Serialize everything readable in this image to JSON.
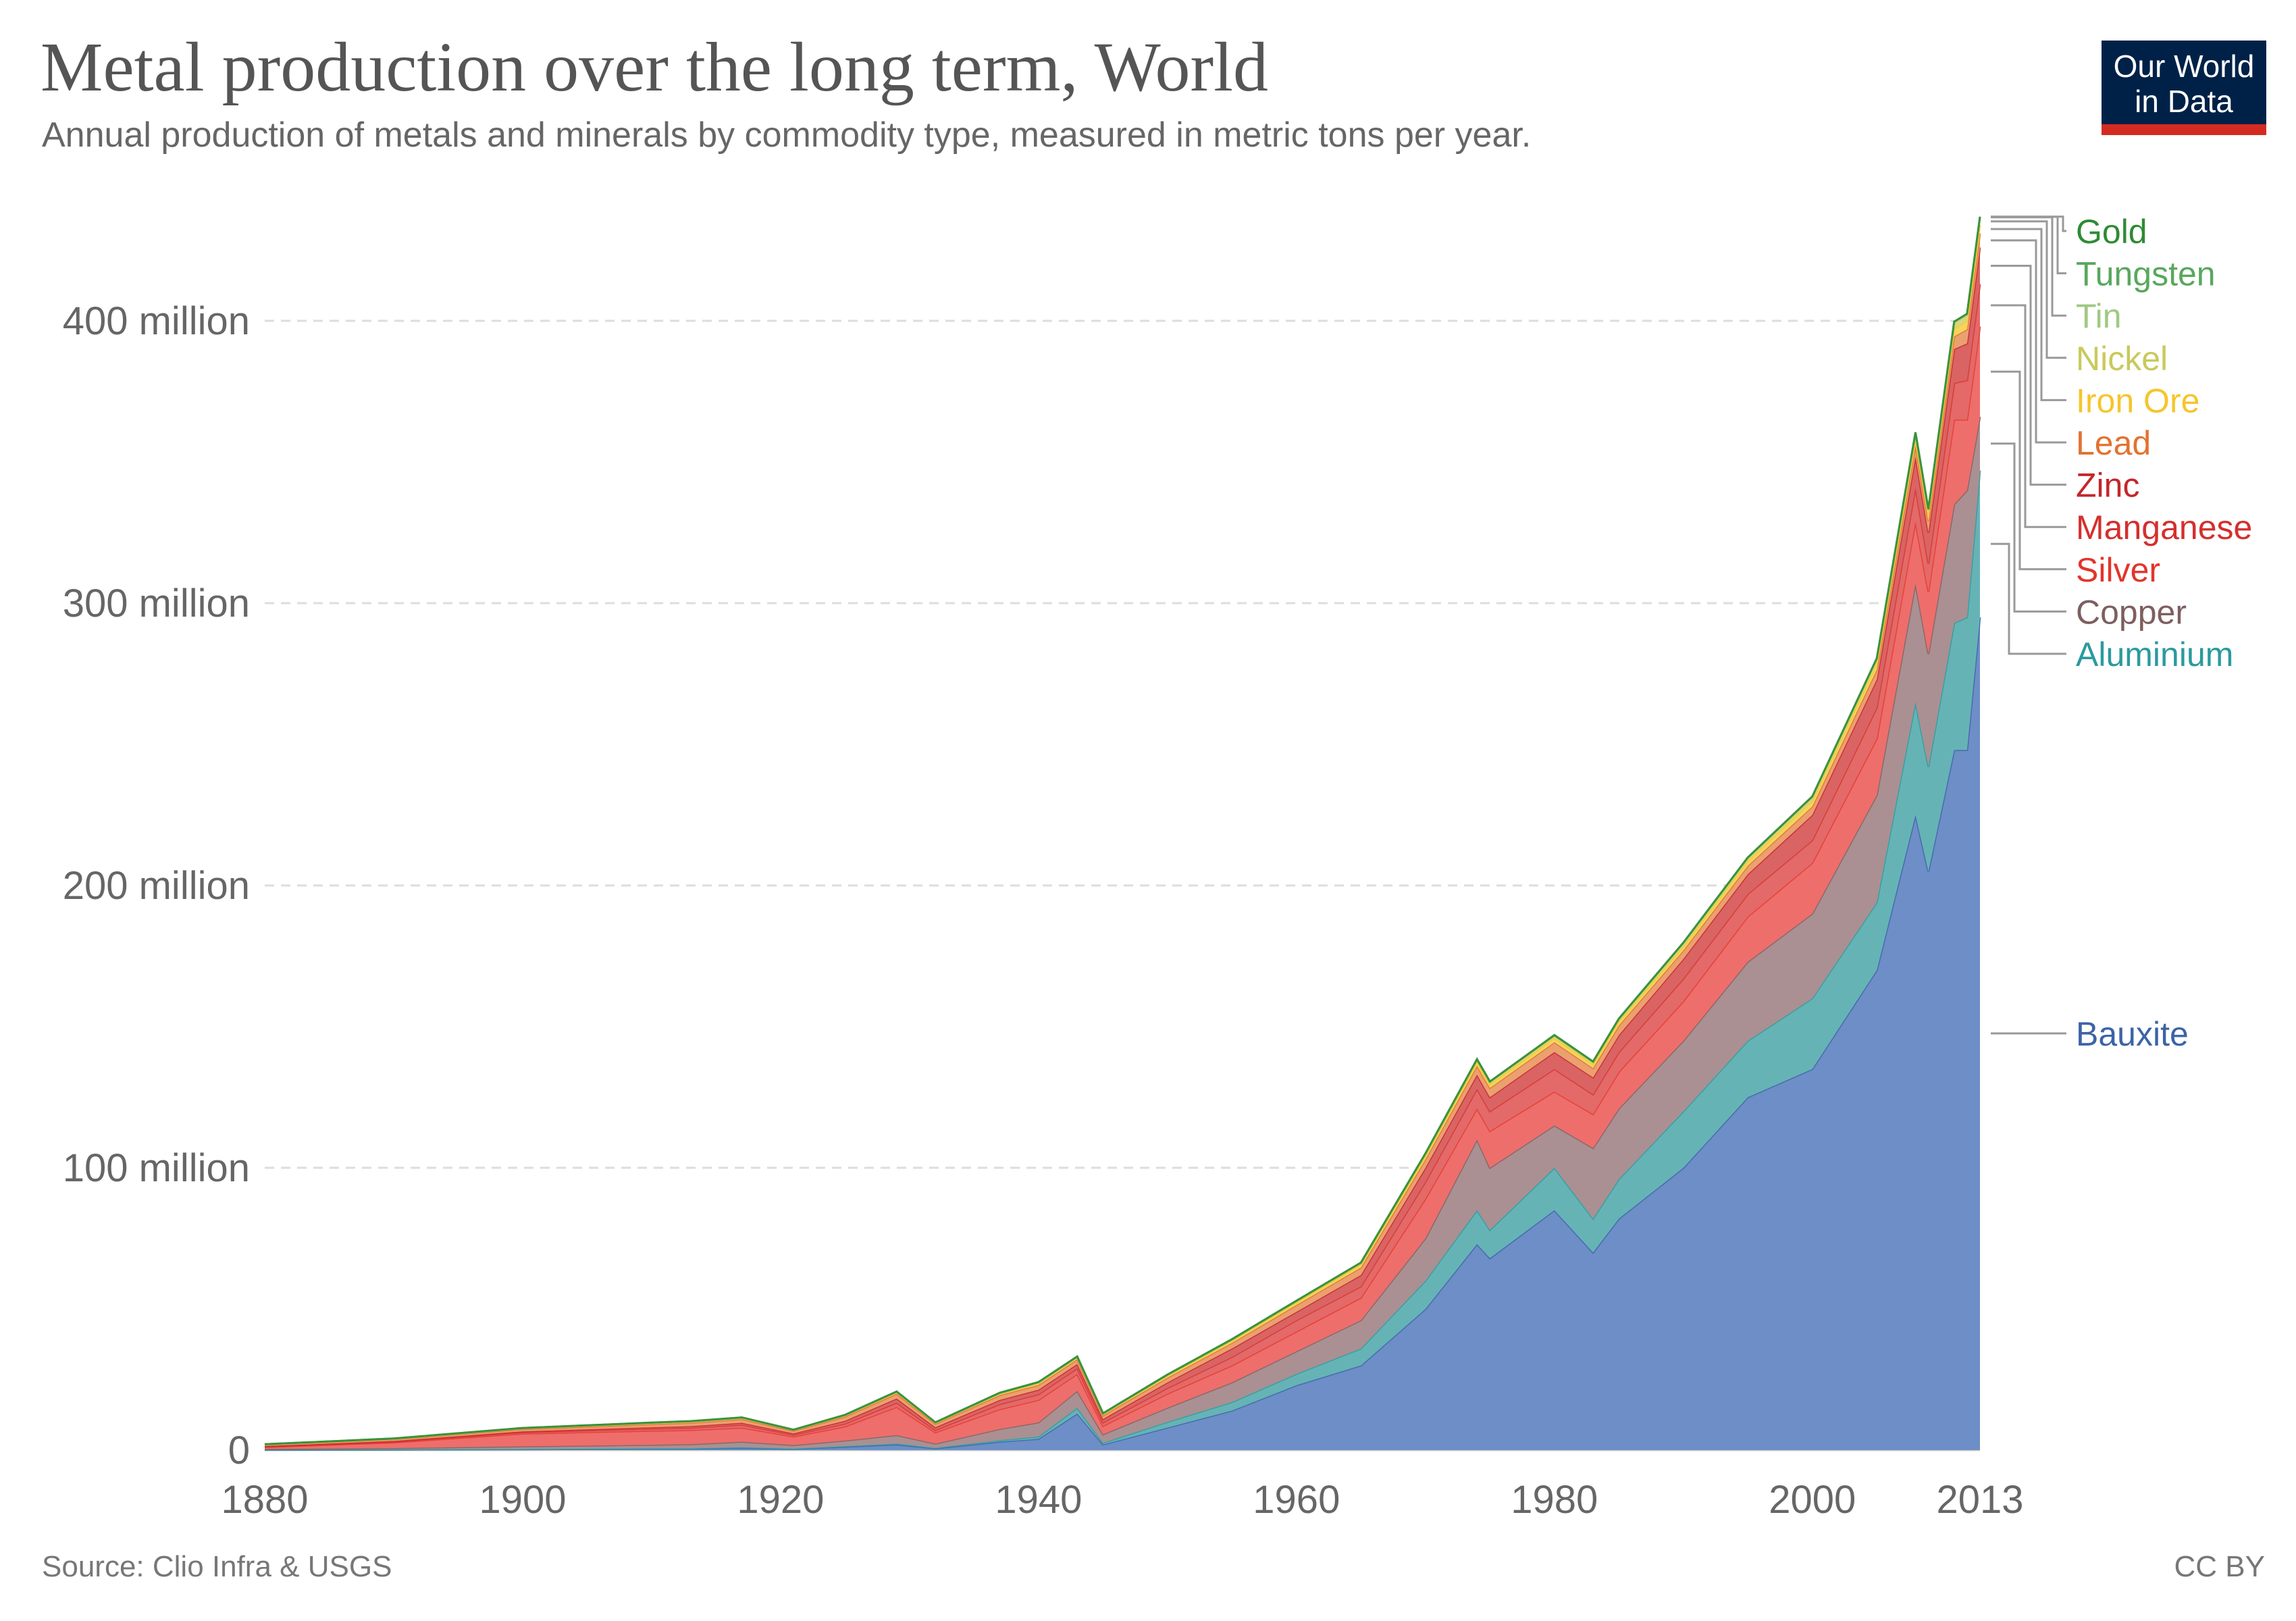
{
  "header": {
    "title": "Metal production over the long term, World",
    "subtitle": "Annual production of metals and minerals by commodity type, measured in metric tons per year.",
    "logo_line1": "Our World",
    "logo_line2": "in Data"
  },
  "footer": {
    "source": "Source: Clio Infra & USGS",
    "license": "CC BY"
  },
  "chart_data": {
    "type": "area",
    "stacked": true,
    "title": "Metal production over the long term, World",
    "xlim": [
      1880,
      2013
    ],
    "ylim": [
      0,
      437000000
    ],
    "grid": true,
    "legend_placement": "right",
    "x_ticks": [
      {
        "value": 1880,
        "label": "1880"
      },
      {
        "value": 1900,
        "label": "1900"
      },
      {
        "value": 1920,
        "label": "1920"
      },
      {
        "value": 1940,
        "label": "1940"
      },
      {
        "value": 1960,
        "label": "1960"
      },
      {
        "value": 1980,
        "label": "1980"
      },
      {
        "value": 2000,
        "label": "2000"
      },
      {
        "value": 2013,
        "label": "2013"
      }
    ],
    "y_ticks": [
      {
        "value": 0,
        "label": "0"
      },
      {
        "value": 100000000,
        "label": "100 million"
      },
      {
        "value": 200000000,
        "label": "200 million"
      },
      {
        "value": 300000000,
        "label": "300 million"
      },
      {
        "value": 400000000,
        "label": "400 million"
      }
    ],
    "unit": "metric tons",
    "x": [
      1880,
      1890,
      1900,
      1910,
      1913,
      1917,
      1921,
      1925,
      1929,
      1932,
      1937,
      1940,
      1943,
      1945,
      1950,
      1955,
      1960,
      1965,
      1970,
      1974,
      1975,
      1980,
      1983,
      1985,
      1990,
      1995,
      2000,
      2005,
      2008,
      2009,
      2011,
      2012,
      2013
    ],
    "series": [
      {
        "name": "Bauxite",
        "color": "#6d8ec6",
        "label_color": "#3c63a8",
        "values_million": [
          0.1,
          0.2,
          0.3,
          0.5,
          0.5,
          0.8,
          0.4,
          1.2,
          2,
          0.6,
          3,
          4,
          13,
          2,
          8,
          14,
          23,
          30,
          50,
          73,
          68,
          85,
          70,
          82,
          100,
          125,
          135,
          170,
          225,
          205,
          248,
          248,
          295
        ]
      },
      {
        "name": "Aluminium",
        "color": "#66b3b6",
        "label_color": "#2a9a9e",
        "values_million": [
          0.01,
          0.02,
          0.05,
          0.1,
          0.1,
          0.2,
          0.1,
          0.2,
          0.3,
          0.2,
          0.5,
          0.8,
          2,
          0.6,
          2,
          3,
          4,
          6,
          10,
          12,
          10,
          15,
          12,
          14,
          20,
          20,
          25,
          24,
          40,
          37,
          45,
          47,
          52
        ]
      },
      {
        "name": "Copper",
        "color": "#aa9092",
        "label_color": "#7d5f5f",
        "values_million": [
          0.3,
          0.5,
          1,
          1.3,
          1.5,
          2,
          1.3,
          2,
          3,
          1.5,
          4,
          5,
          6,
          3,
          5,
          7,
          8,
          10,
          15,
          25,
          22,
          15,
          25,
          25,
          25,
          28,
          30,
          38,
          42,
          40,
          42,
          45,
          19
        ]
      },
      {
        "name": "Silver",
        "color": "#ee6e6c",
        "label_color": "#e3342c",
        "values_million": [
          0.7,
          2,
          4.5,
          5,
          5,
          5,
          3,
          5,
          10,
          4,
          7,
          8,
          6,
          3,
          5,
          6,
          7,
          8,
          14,
          11,
          13,
          12,
          12,
          13,
          14,
          16,
          18,
          20,
          22,
          22,
          30,
          25,
          32
        ]
      },
      {
        "name": "Manganese",
        "color": "#e36a68",
        "label_color": "#d42f2d",
        "values_million": [
          0.2,
          0.3,
          0.5,
          0.7,
          0.8,
          1,
          0.6,
          1,
          1.5,
          0.8,
          1.8,
          2,
          2,
          1.2,
          2,
          3,
          4,
          4,
          6,
          7,
          7,
          8,
          7,
          7,
          8,
          8,
          8,
          11,
          12,
          10,
          13,
          14,
          15
        ]
      },
      {
        "name": "Zinc",
        "color": "#d96463",
        "label_color": "#c4262a",
        "values_million": [
          0.1,
          0.2,
          0.3,
          0.5,
          0.6,
          0.7,
          0.5,
          1,
          1.5,
          1,
          1.5,
          1.6,
          1.5,
          1.2,
          2,
          3,
          3,
          4,
          5,
          5,
          5,
          6,
          6,
          6,
          7,
          7,
          9,
          10,
          11,
          11,
          12,
          13,
          13
        ]
      },
      {
        "name": "Lead",
        "color": "#eba070",
        "label_color": "#e2722f",
        "values_million": [
          0.4,
          0.6,
          0.8,
          1.1,
          1.2,
          1.3,
          0.9,
          1.5,
          1.7,
          1.2,
          1.7,
          1.7,
          1.7,
          1.3,
          1.7,
          2,
          2.4,
          2.7,
          3,
          3.2,
          3.3,
          3.5,
          3.3,
          3.4,
          3,
          3,
          3,
          3.5,
          4,
          4,
          4.5,
          5,
          5
        ]
      },
      {
        "name": "Iron Ore",
        "color": "#f5d55c",
        "label_color": "#f6c52c",
        "values_million": [
          0.2,
          0.2,
          0.3,
          0.4,
          0.4,
          0.4,
          0.3,
          0.4,
          0.5,
          0.4,
          0.5,
          0.6,
          0.6,
          0.5,
          0.7,
          0.8,
          1,
          1.1,
          1.2,
          1.3,
          1.3,
          1.5,
          1.4,
          1.4,
          1.5,
          1.7,
          2,
          2.2,
          2.5,
          2.4,
          2.8,
          2.9,
          3
        ]
      },
      {
        "name": "Nickel",
        "color": "#d8d683",
        "label_color": "#c9c95b",
        "values_million": [
          0.01,
          0.01,
          0.01,
          0.02,
          0.03,
          0.04,
          0.02,
          0.03,
          0.05,
          0.03,
          0.1,
          0.14,
          0.15,
          0.1,
          0.15,
          0.25,
          0.3,
          0.4,
          0.6,
          0.7,
          0.7,
          0.7,
          0.7,
          0.8,
          1,
          1,
          1.2,
          1.4,
          1.6,
          1.5,
          2,
          2.2,
          2.5
        ]
      },
      {
        "name": "Tin",
        "color": "#b5d396",
        "label_color": "#9fc982",
        "values_million": [
          0.05,
          0.08,
          0.09,
          0.1,
          0.12,
          0.12,
          0.1,
          0.14,
          0.19,
          0.1,
          0.2,
          0.23,
          0.15,
          0.1,
          0.17,
          0.18,
          0.18,
          0.19,
          0.23,
          0.23,
          0.2,
          0.25,
          0.2,
          0.2,
          0.22,
          0.2,
          0.28,
          0.3,
          0.33,
          0.3,
          0.33,
          0.33,
          0.3
        ]
      },
      {
        "name": "Tungsten",
        "color": "#6fb671",
        "label_color": "#58a85d",
        "values_million": [
          0.001,
          0.002,
          0.003,
          0.008,
          0.009,
          0.03,
          0.01,
          0.01,
          0.02,
          0.01,
          0.03,
          0.04,
          0.06,
          0.03,
          0.03,
          0.05,
          0.04,
          0.03,
          0.04,
          0.04,
          0.04,
          0.05,
          0.04,
          0.05,
          0.05,
          0.03,
          0.04,
          0.06,
          0.07,
          0.06,
          0.07,
          0.07,
          0.08
        ]
      },
      {
        "name": "Gold",
        "color": "#3a9a3e",
        "label_color": "#2e8b34",
        "values_million": [
          0.0002,
          0.0002,
          0.0004,
          0.0007,
          0.0007,
          0.0006,
          0.0005,
          0.0006,
          0.0006,
          0.0007,
          0.001,
          0.0012,
          0.0009,
          0.0007,
          0.0009,
          0.0009,
          0.0012,
          0.0014,
          0.0015,
          0.0012,
          0.0012,
          0.0012,
          0.0014,
          0.0015,
          0.0022,
          0.0022,
          0.0026,
          0.0025,
          0.0023,
          0.0025,
          0.0027,
          0.0027,
          0.0028
        ]
      }
    ]
  }
}
